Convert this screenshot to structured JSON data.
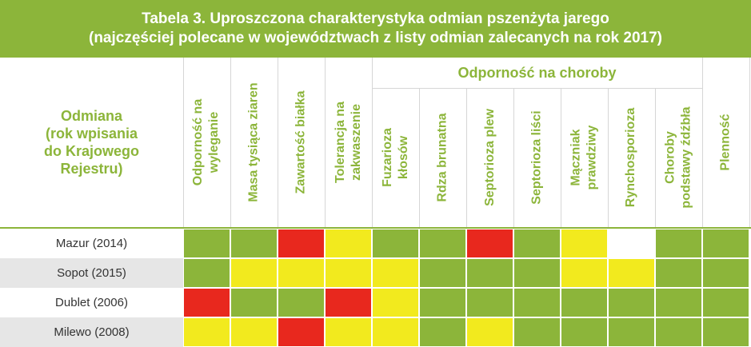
{
  "title": {
    "line1": "Tabela 3. Uproszczona charakterystyka odmian pszenżyta jarego",
    "line2": "(najczęściej polecane w województwach z listy odmian zalecanych na rok 2017)"
  },
  "row_header": {
    "lines": [
      "Odmiana",
      "(rok wpisania",
      "do Krajowego",
      "Rejestru)"
    ]
  },
  "group_header": "Odporność na choroby",
  "columns": [
    {
      "lines": [
        "Odporność na",
        "wyleganie"
      ]
    },
    {
      "lines": [
        "Masa tysiąca ziaren"
      ]
    },
    {
      "lines": [
        "Zawartość białka"
      ]
    },
    {
      "lines": [
        "Tolerancja na",
        "zakwaszenie"
      ]
    },
    {
      "lines": [
        "Fuzarioza",
        "kłosów"
      ]
    },
    {
      "lines": [
        "Rdza brunatna"
      ]
    },
    {
      "lines": [
        "Septorioza plew"
      ]
    },
    {
      "lines": [
        "Septorioza liści"
      ]
    },
    {
      "lines": [
        "Mączniak",
        "prawdziwy"
      ]
    },
    {
      "lines": [
        "Rynchosporioza"
      ]
    },
    {
      "lines": [
        "Choroby",
        "podstawy źdźbła"
      ]
    },
    {
      "lines": [
        "Plenność"
      ]
    }
  ],
  "colors": {
    "G": "#8cb53a",
    "Y": "#f2ea1e",
    "R": "#e8281e",
    "W": "#ffffff",
    "accent": "#8cb53a"
  },
  "rows": [
    {
      "label": "Mazur (2014)",
      "cells": [
        "G",
        "G",
        "R",
        "Y",
        "G",
        "G",
        "R",
        "G",
        "Y",
        "W",
        "G",
        "G"
      ]
    },
    {
      "label": "Sopot (2015)",
      "cells": [
        "G",
        "Y",
        "Y",
        "Y",
        "Y",
        "G",
        "G",
        "G",
        "Y",
        "Y",
        "G",
        "G"
      ]
    },
    {
      "label": "Dublet (2006)",
      "cells": [
        "R",
        "G",
        "G",
        "R",
        "Y",
        "G",
        "G",
        "G",
        "G",
        "G",
        "G",
        "G"
      ]
    },
    {
      "label": "Milewo (2008)",
      "cells": [
        "Y",
        "Y",
        "R",
        "Y",
        "Y",
        "G",
        "Y",
        "G",
        "G",
        "G",
        "G",
        "G"
      ]
    }
  ]
}
